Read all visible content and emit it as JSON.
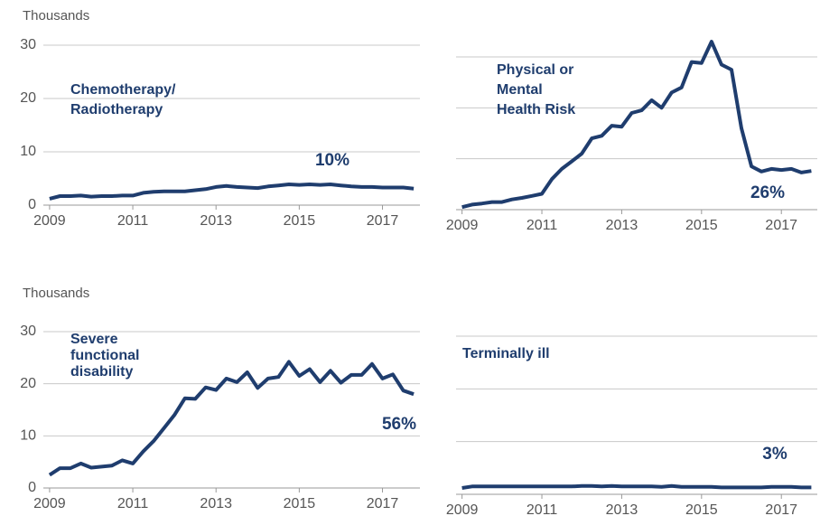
{
  "chart_data": [
    {
      "type": "line",
      "y_axis_label": "Thousands",
      "label": [
        "Chemotherapy/",
        "Radiotherapy"
      ],
      "pct_label": "10%",
      "color": "#1f3d6e",
      "x": [
        2009,
        2009.25,
        2009.5,
        2009.75,
        2010,
        2010.25,
        2010.5,
        2010.75,
        2011,
        2011.25,
        2011.5,
        2011.75,
        2012,
        2012.25,
        2012.5,
        2012.75,
        2013,
        2013.25,
        2013.5,
        2013.75,
        2014,
        2014.25,
        2014.5,
        2014.75,
        2015,
        2015.25,
        2015.5,
        2015.75,
        2016,
        2016.25,
        2016.5,
        2016.75,
        2017,
        2017.25,
        2017.5,
        2017.75
      ],
      "values": [
        1.2,
        1.7,
        1.7,
        1.8,
        1.6,
        1.7,
        1.7,
        1.8,
        1.8,
        2.3,
        2.5,
        2.6,
        2.6,
        2.6,
        2.8,
        3.0,
        3.4,
        3.6,
        3.4,
        3.3,
        3.2,
        3.5,
        3.7,
        3.9,
        3.8,
        3.9,
        3.8,
        3.9,
        3.7,
        3.5,
        3.4,
        3.4,
        3.3,
        3.3,
        3.3,
        3.1
      ],
      "xlim": [
        2008.85,
        2017.9
      ],
      "xticks": [
        2009,
        2011,
        2013,
        2015,
        2017
      ],
      "ylim": [
        0,
        30
      ],
      "yticks": [
        0,
        10,
        20,
        30
      ],
      "show_ytick_labels": true,
      "grid": true
    },
    {
      "type": "line",
      "label": [
        "Physical or",
        "Mental",
        "Health Risk"
      ],
      "pct_label": "26%",
      "color": "#1f3d6e",
      "x": [
        2009,
        2009.25,
        2009.5,
        2009.75,
        2010,
        2010.25,
        2010.5,
        2010.75,
        2011,
        2011.25,
        2011.5,
        2011.75,
        2012,
        2012.25,
        2012.5,
        2012.75,
        2013,
        2013.25,
        2013.5,
        2013.75,
        2014,
        2014.25,
        2014.5,
        2014.75,
        2015,
        2015.25,
        2015.5,
        2015.75,
        2016,
        2016.25,
        2016.5,
        2016.75,
        2017,
        2017.25,
        2017.5,
        2017.75
      ],
      "values": [
        0.5,
        1,
        1.2,
        1.5,
        1.5,
        2,
        2.3,
        2.7,
        3.1,
        6,
        8,
        9.5,
        11,
        14,
        14.5,
        16.5,
        16.3,
        19,
        19.5,
        21.5,
        20,
        23,
        24,
        29,
        28.8,
        33,
        28.5,
        27.5,
        16,
        8.5,
        7.5,
        8,
        7.8,
        8,
        7.3,
        7.6
      ],
      "xlim": [
        2008.85,
        2017.9
      ],
      "xticks": [
        2009,
        2011,
        2013,
        2015,
        2017
      ],
      "ylim": [
        0,
        30
      ],
      "yticks": [
        0,
        10,
        20,
        30
      ],
      "show_ytick_labels": false,
      "grid": true
    },
    {
      "type": "line",
      "y_axis_label": "Thousands",
      "label": [
        "Severe",
        "functional",
        "disability"
      ],
      "pct_label": "56%",
      "color": "#1f3d6e",
      "x": [
        2009,
        2009.25,
        2009.5,
        2009.75,
        2010,
        2010.25,
        2010.5,
        2010.75,
        2011,
        2011.25,
        2011.5,
        2011.75,
        2012,
        2012.25,
        2012.5,
        2012.75,
        2013,
        2013.25,
        2013.5,
        2013.75,
        2014,
        2014.25,
        2014.5,
        2014.75,
        2015,
        2015.25,
        2015.5,
        2015.75,
        2016,
        2016.25,
        2016.5,
        2016.75,
        2017,
        2017.25,
        2017.5,
        2017.75
      ],
      "values": [
        2.5,
        3.8,
        3.8,
        4.7,
        3.9,
        4.1,
        4.3,
        5.3,
        4.7,
        7,
        9,
        11.5,
        14,
        17.2,
        17.1,
        19.3,
        18.8,
        21,
        20.3,
        22.2,
        19.2,
        21,
        21.3,
        24.2,
        21.5,
        22.8,
        20.3,
        22.5,
        20.2,
        21.7,
        21.7,
        23.8,
        21,
        21.8,
        18.7,
        18
      ],
      "xlim": [
        2008.85,
        2017.9
      ],
      "xticks": [
        2009,
        2011,
        2013,
        2015,
        2017
      ],
      "ylim": [
        0,
        30
      ],
      "yticks": [
        0,
        10,
        20,
        30
      ],
      "show_ytick_labels": true,
      "grid": true
    },
    {
      "type": "line",
      "label": [
        "Terminally ill"
      ],
      "pct_label": "3%",
      "color": "#1f3d6e",
      "x": [
        2009,
        2009.25,
        2009.5,
        2009.75,
        2010,
        2010.25,
        2010.5,
        2010.75,
        2011,
        2011.25,
        2011.5,
        2011.75,
        2012,
        2012.25,
        2012.5,
        2012.75,
        2013,
        2013.25,
        2013.5,
        2013.75,
        2014,
        2014.25,
        2014.5,
        2014.75,
        2015,
        2015.25,
        2015.5,
        2015.75,
        2016,
        2016.25,
        2016.5,
        2016.75,
        2017,
        2017.25,
        2017.5,
        2017.75
      ],
      "values": [
        1.2,
        1.5,
        1.5,
        1.5,
        1.5,
        1.5,
        1.5,
        1.5,
        1.5,
        1.5,
        1.5,
        1.5,
        1.6,
        1.6,
        1.5,
        1.6,
        1.5,
        1.5,
        1.5,
        1.5,
        1.4,
        1.6,
        1.4,
        1.4,
        1.4,
        1.4,
        1.3,
        1.3,
        1.3,
        1.3,
        1.3,
        1.4,
        1.4,
        1.4,
        1.3,
        1.3
      ],
      "xlim": [
        2008.85,
        2017.9
      ],
      "xticks": [
        2009,
        2011,
        2013,
        2015,
        2017
      ],
      "ylim": [
        0,
        30
      ],
      "yticks": [
        0,
        10,
        20,
        30
      ],
      "show_ytick_labels": false,
      "grid": true
    }
  ]
}
